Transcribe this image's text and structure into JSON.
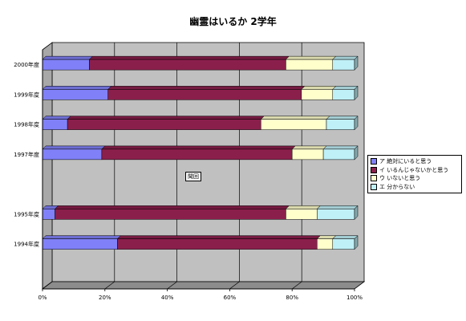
{
  "chart_data": {
    "type": "bar",
    "stacked": true,
    "orientation": "horizontal",
    "percent_stacked": true,
    "title": "幽霊はいるか 2学年",
    "categories": [
      "2000年度",
      "1999年度",
      "1998年度",
      "1997年度",
      "",
      "1995年度",
      "1994年度"
    ],
    "series": [
      {
        "name": "ア 絶対にいると思う",
        "color": "#8080f8",
        "values": [
          15,
          21,
          8,
          19,
          null,
          4,
          24
        ]
      },
      {
        "name": "イ いるんじゃないかと思う",
        "color": "#8b1f4c",
        "values": [
          63,
          62,
          62,
          61,
          null,
          74,
          64
        ]
      },
      {
        "name": "ウ いないと思う",
        "color": "#ffffcc",
        "values": [
          15,
          10,
          21,
          10,
          null,
          10,
          5
        ]
      },
      {
        "name": "エ 分からない",
        "color": "#bff0f7",
        "values": [
          7,
          7,
          9,
          10,
          null,
          12,
          7
        ]
      }
    ],
    "x_ticks": [
      "0%",
      "20%",
      "40%",
      "60%",
      "80%",
      "100%"
    ],
    "xlim": [
      0,
      100
    ],
    "grid": true,
    "legend_position": "right",
    "annotation": "聞回"
  }
}
